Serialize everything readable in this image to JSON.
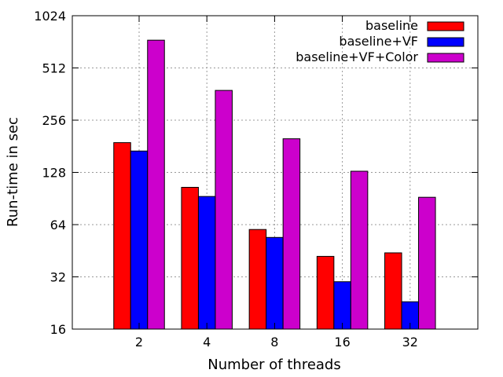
{
  "chart_data": {
    "type": "bar",
    "title": "",
    "xlabel": "Number of threads",
    "ylabel": "Run-time in sec",
    "yscale": "log2",
    "ylim": [
      16,
      1024
    ],
    "yticks": [
      16,
      32,
      64,
      128,
      256,
      512,
      1024
    ],
    "categories": [
      "2",
      "4",
      "8",
      "16",
      "32"
    ],
    "grid": true,
    "legend_position": "top-right",
    "series": [
      {
        "name": "baseline",
        "color": "#ff0000",
        "values": [
          190,
          105,
          60,
          42,
          44
        ]
      },
      {
        "name": "baseline+VF",
        "color": "#0000ff",
        "values": [
          170,
          93,
          54,
          30,
          23
        ]
      },
      {
        "name": "baseline+VF+Color",
        "color": "#cc00cc",
        "values": [
          740,
          380,
          200,
          130,
          92
        ]
      }
    ]
  }
}
